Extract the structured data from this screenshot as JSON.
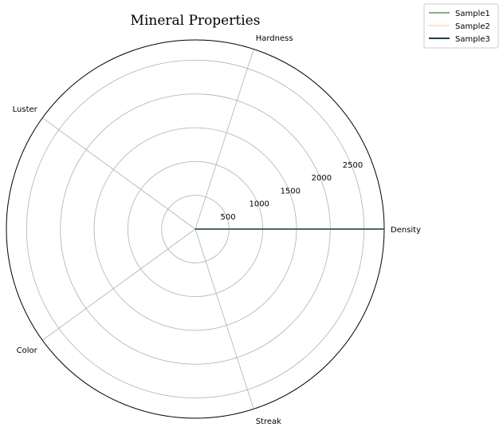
{
  "chart_data": {
    "type": "radar",
    "title": "Mineral Properties",
    "axes": [
      "Density",
      "Hardness",
      "Luster",
      "Color",
      "Streak"
    ],
    "rlim": [
      0,
      2800
    ],
    "rticks": [
      500,
      1000,
      1500,
      2000,
      2500
    ],
    "rtick_labels": [
      "500",
      "1000",
      "1500",
      "2000",
      "2500"
    ],
    "grid": true,
    "legend_position": "top-right",
    "series": [
      {
        "name": "Sample1",
        "color": "#7fb77e",
        "values": [
          2800,
          0,
          0,
          0,
          0
        ]
      },
      {
        "name": "Sample2",
        "color": "#fde5c8",
        "values": [
          2800,
          0,
          0,
          0,
          0
        ]
      },
      {
        "name": "Sample3",
        "color": "#203f4a",
        "values": [
          2800,
          0,
          0,
          0,
          0
        ]
      }
    ]
  }
}
